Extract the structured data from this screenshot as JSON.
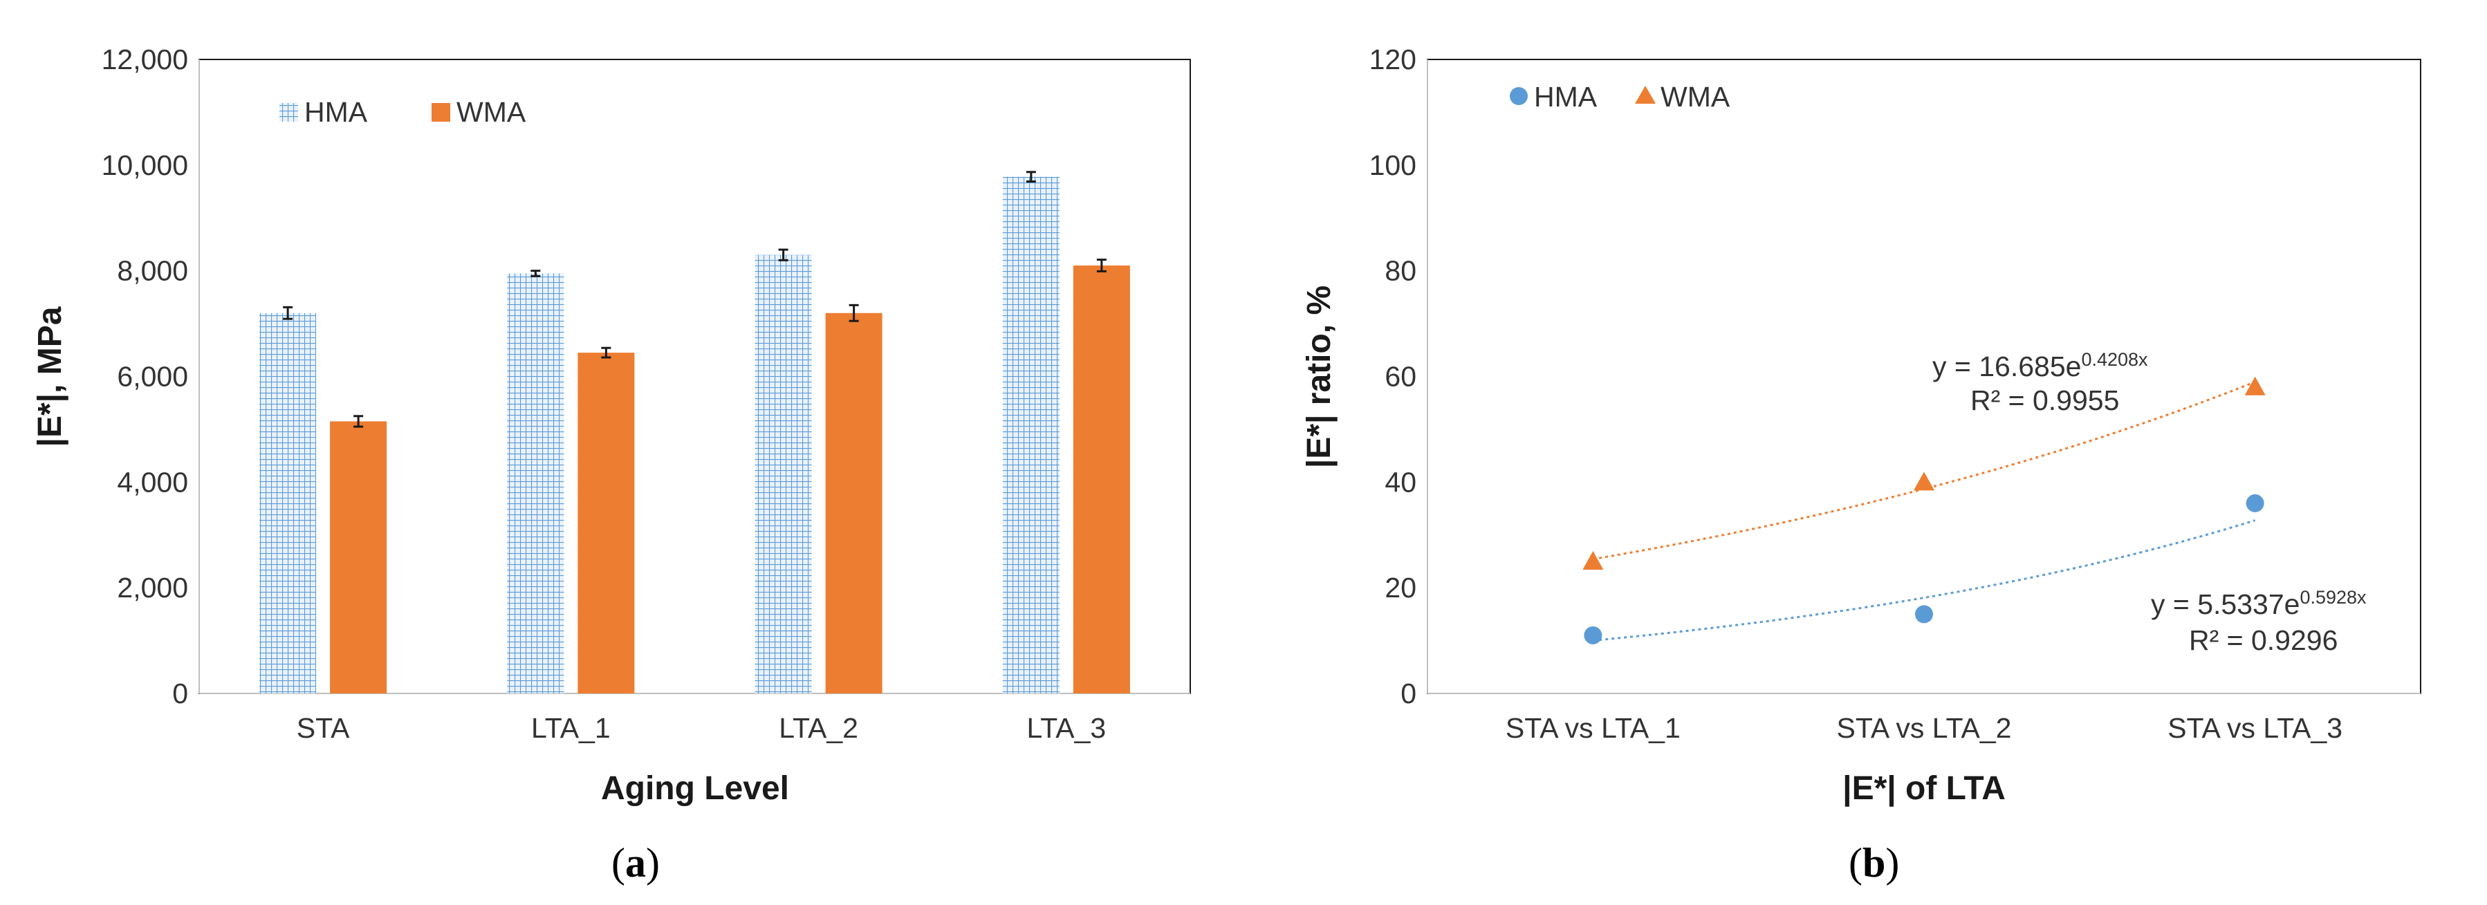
{
  "colors": {
    "hma": "#5b9bd5",
    "wma": "#ed7d31",
    "hma_trend": "#5b9bd5",
    "wma_trend": "#ed7d31",
    "axis": "#bfbfbf",
    "frame": "#1a1a1a"
  },
  "chart_data": [
    {
      "id": "a",
      "type": "bar",
      "panel_label": "a",
      "categories": [
        "STA",
        "LTA_1",
        "LTA_2",
        "LTA_3"
      ],
      "series": [
        {
          "name": "HMA",
          "values": [
            7200,
            7950,
            8300,
            9780
          ],
          "errors": [
            110,
            50,
            100,
            90
          ],
          "pattern": "grid-hatch"
        },
        {
          "name": "WMA",
          "values": [
            5150,
            6450,
            7200,
            8100
          ],
          "errors": [
            100,
            90,
            150,
            110
          ],
          "pattern": "solid"
        }
      ],
      "xlabel": "Aging Level",
      "ylabel": "|E*|, MPa",
      "ylim": [
        0,
        12000
      ],
      "yticks": [
        0,
        2000,
        4000,
        6000,
        8000,
        10000,
        12000
      ],
      "ytick_labels": [
        "0",
        "2,000",
        "4,000",
        "6,000",
        "8,000",
        "10,000",
        "12,000"
      ],
      "legend_position": "top-left",
      "grid": false
    },
    {
      "id": "b",
      "type": "scatter",
      "panel_label": "b",
      "categories": [
        "STA vs LTA_1",
        "STA vs LTA_2",
        "STA vs LTA_3"
      ],
      "series": [
        {
          "name": "HMA",
          "marker": "circle",
          "values": [
            11,
            15,
            36
          ],
          "trendline": {
            "type": "exponential",
            "a": 5.5337,
            "b": 0.5928,
            "equation_prefix": "y = 5.5337e",
            "equation_exponent": "0.5928x",
            "r2_label": "R² = 0.9296"
          }
        },
        {
          "name": "WMA",
          "marker": "triangle",
          "values": [
            25,
            40,
            58
          ],
          "trendline": {
            "type": "exponential",
            "a": 16.685,
            "b": 0.4208,
            "equation_prefix": "y = 16.685e",
            "equation_exponent": "0.4208x",
            "r2_label": "R² = 0.9955"
          }
        }
      ],
      "xlabel": "|E*| of LTA",
      "ylabel": "|E*| ratio, %",
      "ylim": [
        0,
        120
      ],
      "yticks": [
        0,
        20,
        40,
        60,
        80,
        100,
        120
      ],
      "ytick_labels": [
        "0",
        "20",
        "40",
        "60",
        "80",
        "100",
        "120"
      ],
      "legend_position": "top-left",
      "grid": false
    }
  ]
}
